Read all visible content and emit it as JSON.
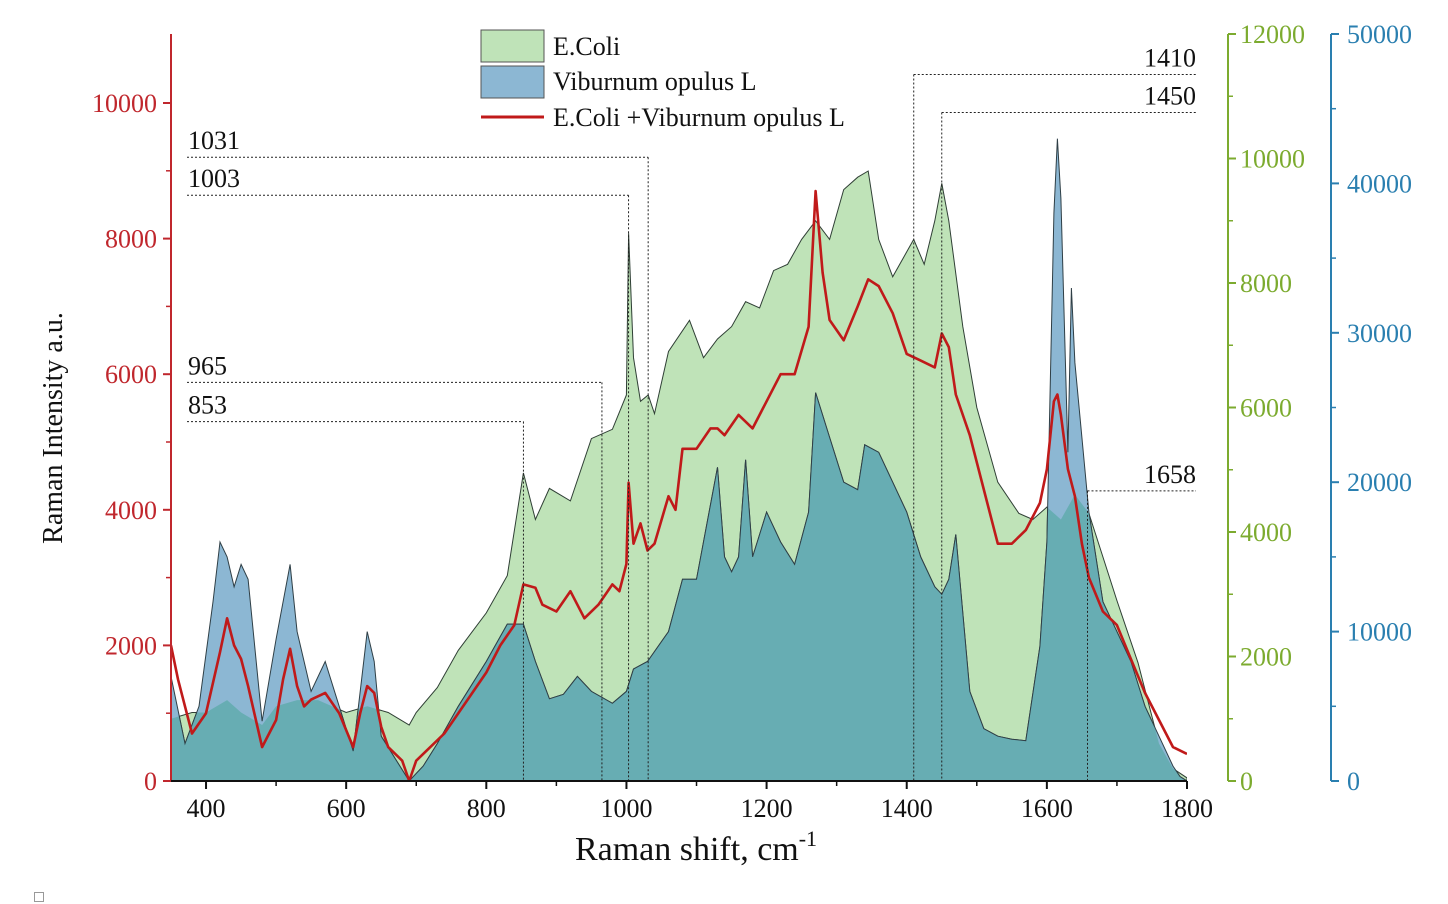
{
  "chart_data": {
    "type": "area",
    "xlabel": "Raman shift, cm",
    "xlabel_superscript": "-1",
    "ylabel": "Raman Intensity a.u.",
    "xlim": [
      350,
      1800
    ],
    "x_ticks": [
      400,
      600,
      800,
      1000,
      1200,
      1400,
      1600,
      1800
    ],
    "y_axes": [
      {
        "id": "left",
        "color": "#c0272d",
        "ylim": [
          0,
          11000
        ],
        "ticks": [
          0,
          2000,
          4000,
          6000,
          8000,
          10000
        ]
      },
      {
        "id": "mid",
        "color": "#7cab2f",
        "ylim": [
          0,
          12000
        ],
        "ticks": [
          0,
          2000,
          4000,
          6000,
          8000,
          10000,
          12000
        ]
      },
      {
        "id": "right",
        "color": "#2a7fb0",
        "ylim": [
          0,
          50000
        ],
        "ticks": [
          0,
          10000,
          20000,
          30000,
          40000,
          50000
        ]
      }
    ],
    "legend": {
      "position": "top-center",
      "entries": [
        "E.Coli",
        "Viburnum opulus L",
        "E.Coli +Viburnum opulus L"
      ]
    },
    "peak_labels": [
      {
        "text": "1031",
        "x": 1031,
        "y_level": 9200
      },
      {
        "text": "1003",
        "x": 1003,
        "y_level": 8640
      },
      {
        "text": "965",
        "x": 965,
        "y_level": 5880
      },
      {
        "text": "853",
        "x": 853,
        "y_level": 5300
      },
      {
        "text": "1410",
        "x": 1410,
        "y_level": 10420
      },
      {
        "text": "1450",
        "x": 1450,
        "y_level": 9860
      },
      {
        "text": "1658",
        "x": 1658,
        "y_level": 4280
      }
    ],
    "series": [
      {
        "name": "E.Coli",
        "axis": "mid",
        "fill": "#bfe3b8",
        "x": [
          350,
          380,
          400,
          430,
          450,
          480,
          500,
          530,
          560,
          600,
          630,
          660,
          690,
          700,
          730,
          760,
          800,
          830,
          853,
          870,
          890,
          920,
          950,
          980,
          1000,
          1003,
          1010,
          1020,
          1031,
          1040,
          1060,
          1090,
          1110,
          1130,
          1150,
          1170,
          1190,
          1210,
          1230,
          1250,
          1270,
          1290,
          1310,
          1330,
          1345,
          1360,
          1380,
          1400,
          1410,
          1425,
          1440,
          1450,
          1460,
          1480,
          1500,
          1530,
          1560,
          1580,
          1600,
          1620,
          1640,
          1660,
          1680,
          1700,
          1730,
          1760,
          1780,
          1800
        ],
        "y": [
          1000,
          1100,
          1100,
          1300,
          1100,
          900,
          1200,
          1300,
          1300,
          1100,
          1200,
          1100,
          900,
          1100,
          1500,
          2100,
          2700,
          3300,
          4950,
          4200,
          4700,
          4500,
          5500,
          5650,
          6200,
          8800,
          6800,
          6100,
          6200,
          5900,
          6900,
          7400,
          6800,
          7100,
          7300,
          7700,
          7600,
          8200,
          8300,
          8700,
          9000,
          8700,
          9500,
          9700,
          9800,
          8700,
          8100,
          8500,
          8700,
          8300,
          9000,
          9600,
          9000,
          7300,
          6000,
          4800,
          4300,
          4200,
          4400,
          4200,
          4600,
          4300,
          3600,
          2900,
          1900,
          600,
          200,
          50
        ]
      },
      {
        "name": "Viburnum opulus L",
        "axis": "right",
        "fill": "#8cb7d3",
        "x": [
          350,
          370,
          390,
          410,
          420,
          430,
          440,
          450,
          460,
          480,
          500,
          510,
          520,
          530,
          550,
          570,
          590,
          610,
          630,
          640,
          650,
          670,
          690,
          710,
          730,
          760,
          800,
          830,
          853,
          870,
          890,
          910,
          930,
          950,
          980,
          1000,
          1010,
          1030,
          1060,
          1080,
          1100,
          1120,
          1130,
          1140,
          1150,
          1160,
          1170,
          1180,
          1200,
          1220,
          1240,
          1260,
          1270,
          1290,
          1310,
          1330,
          1340,
          1360,
          1380,
          1400,
          1420,
          1440,
          1450,
          1460,
          1470,
          1490,
          1510,
          1530,
          1550,
          1570,
          1590,
          1600,
          1610,
          1615,
          1620,
          1630,
          1635,
          1640,
          1660,
          1680,
          1700,
          1720,
          1740,
          1760,
          1780,
          1790,
          1800
        ],
        "y": [
          7000,
          2500,
          5000,
          12000,
          16000,
          15000,
          13000,
          14500,
          13500,
          4000,
          9500,
          12000,
          14500,
          10000,
          6000,
          8000,
          5000,
          2000,
          10000,
          8000,
          3000,
          1500,
          0,
          1000,
          2500,
          5000,
          8000,
          10500,
          10500,
          8000,
          5500,
          5800,
          7000,
          6000,
          5200,
          6000,
          7500,
          8000,
          10000,
          13500,
          13500,
          18500,
          21000,
          15000,
          14000,
          15000,
          21500,
          15000,
          18000,
          16000,
          14500,
          18000,
          26000,
          23000,
          20000,
          19500,
          22500,
          22000,
          20000,
          18000,
          15000,
          13000,
          12500,
          13500,
          16500,
          6000,
          3500,
          3000,
          2800,
          2700,
          9000,
          16000,
          38000,
          43000,
          39000,
          22000,
          33000,
          28000,
          18000,
          12000,
          10000,
          8000,
          5000,
          3000,
          1000,
          300,
          0
        ]
      },
      {
        "name": "E.Coli +Viburnum opulus L",
        "axis": "left",
        "stroke": "#c01a1a",
        "x": [
          350,
          360,
          380,
          400,
          420,
          430,
          440,
          450,
          460,
          480,
          500,
          510,
          520,
          530,
          540,
          550,
          570,
          590,
          610,
          620,
          630,
          640,
          650,
          660,
          680,
          690,
          700,
          720,
          740,
          760,
          780,
          800,
          820,
          840,
          853,
          870,
          880,
          900,
          920,
          940,
          960,
          980,
          990,
          1000,
          1003,
          1010,
          1020,
          1030,
          1040,
          1060,
          1070,
          1080,
          1100,
          1120,
          1130,
          1140,
          1160,
          1180,
          1200,
          1220,
          1240,
          1260,
          1270,
          1280,
          1290,
          1310,
          1330,
          1345,
          1360,
          1380,
          1400,
          1420,
          1440,
          1450,
          1460,
          1470,
          1490,
          1510,
          1530,
          1550,
          1570,
          1590,
          1600,
          1610,
          1615,
          1620,
          1630,
          1640,
          1650,
          1660,
          1680,
          1700,
          1720,
          1740,
          1760,
          1780,
          1800
        ],
        "y": [
          2000,
          1500,
          700,
          1000,
          1900,
          2400,
          2000,
          1800,
          1400,
          500,
          900,
          1500,
          1950,
          1400,
          1100,
          1200,
          1300,
          1000,
          500,
          1000,
          1400,
          1300,
          800,
          500,
          300,
          0,
          300,
          500,
          700,
          1000,
          1300,
          1600,
          2000,
          2300,
          2900,
          2850,
          2600,
          2500,
          2800,
          2400,
          2600,
          2900,
          2800,
          3200,
          4400,
          3500,
          3800,
          3400,
          3500,
          4200,
          4000,
          4900,
          4900,
          5200,
          5200,
          5100,
          5400,
          5200,
          5600,
          6000,
          6000,
          6700,
          8700,
          7500,
          6800,
          6500,
          7000,
          7400,
          7300,
          6900,
          6300,
          6200,
          6100,
          6600,
          6400,
          5700,
          5100,
          4300,
          3500,
          3500,
          3700,
          4100,
          4600,
          5600,
          5700,
          5400,
          4600,
          4200,
          3500,
          3000,
          2500,
          2300,
          1800,
          1300,
          900,
          500,
          400
        ]
      }
    ]
  }
}
